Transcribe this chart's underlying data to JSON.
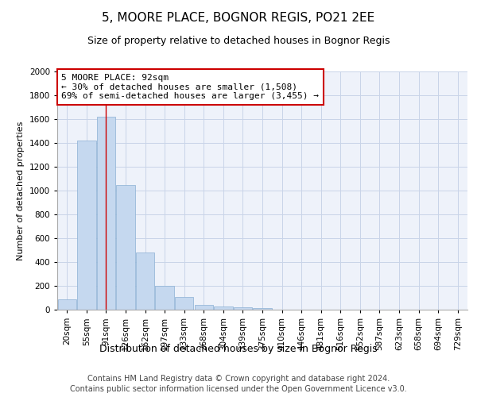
{
  "title1": "5, MOORE PLACE, BOGNOR REGIS, PO21 2EE",
  "title2": "Size of property relative to detached houses in Bognor Regis",
  "xlabel": "Distribution of detached houses by size in Bognor Regis",
  "ylabel": "Number of detached properties",
  "categories": [
    "20sqm",
    "55sqm",
    "91sqm",
    "126sqm",
    "162sqm",
    "197sqm",
    "233sqm",
    "268sqm",
    "304sqm",
    "339sqm",
    "375sqm",
    "410sqm",
    "446sqm",
    "481sqm",
    "516sqm",
    "552sqm",
    "587sqm",
    "623sqm",
    "658sqm",
    "694sqm",
    "729sqm"
  ],
  "bar_heights": [
    85,
    1420,
    1620,
    1050,
    480,
    200,
    105,
    40,
    25,
    20,
    15,
    0,
    0,
    0,
    0,
    0,
    0,
    0,
    0,
    0,
    0
  ],
  "bar_color": "#c5d8ef",
  "bar_edge_color": "#8ab0d4",
  "grid_color": "#c8d4e8",
  "background_color": "#eef2fa",
  "vline_x_index": 2,
  "vline_color": "#cc0000",
  "annotation_text": "5 MOORE PLACE: 92sqm\n← 30% of detached houses are smaller (1,508)\n69% of semi-detached houses are larger (3,455) →",
  "annotation_box_facecolor": "#ffffff",
  "annotation_box_edgecolor": "#cc0000",
  "ylim": [
    0,
    2000
  ],
  "yticks": [
    0,
    200,
    400,
    600,
    800,
    1000,
    1200,
    1400,
    1600,
    1800,
    2000
  ],
  "title1_fontsize": 11,
  "title2_fontsize": 9,
  "ylabel_fontsize": 8,
  "xlabel_fontsize": 9,
  "tick_fontsize": 7.5,
  "footer1": "Contains HM Land Registry data © Crown copyright and database right 2024.",
  "footer2": "Contains public sector information licensed under the Open Government Licence v3.0.",
  "footer_fontsize": 7
}
